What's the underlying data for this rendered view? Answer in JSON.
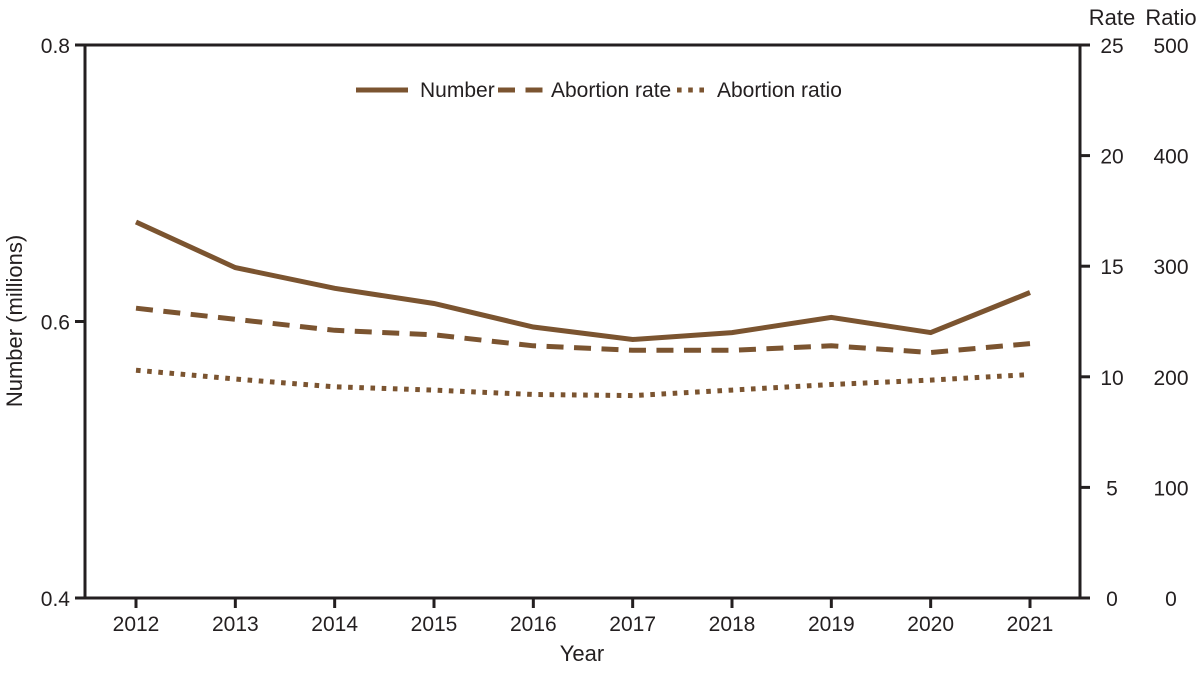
{
  "chart_data": {
    "type": "line",
    "title": "",
    "xlabel": "Year",
    "x": [
      2012,
      2013,
      2014,
      2015,
      2016,
      2017,
      2018,
      2019,
      2020,
      2021
    ],
    "x_tick_labels": [
      "2012",
      "2013",
      "2014",
      "2015",
      "2016",
      "2017",
      "2018",
      "2019",
      "2020",
      "2021"
    ],
    "left_axis": {
      "label": "Number (millions)",
      "min": 0.4,
      "max": 0.8,
      "tick_labels": [
        "0.8",
        "0.6",
        "0.4"
      ],
      "tick_values": [
        0.8,
        0.6,
        0.4
      ]
    },
    "right_axes": [
      {
        "header": "Rate",
        "min": 0,
        "max": 25,
        "tick_labels": [
          "25",
          "20",
          "15",
          "10",
          "5",
          "0"
        ],
        "tick_values": [
          25,
          20,
          15,
          10,
          5,
          0
        ]
      },
      {
        "header": "Ratio",
        "min": 0,
        "max": 500,
        "tick_labels": [
          "500",
          "400",
          "300",
          "200",
          "100",
          "0"
        ],
        "tick_values": [
          500,
          400,
          300,
          200,
          100,
          0
        ]
      }
    ],
    "series": [
      {
        "name": "Number",
        "axis": "left",
        "style": "solid",
        "values": [
          0.672,
          0.639,
          0.624,
          0.613,
          0.596,
          0.587,
          0.592,
          0.603,
          0.592,
          0.621
        ]
      },
      {
        "name": "Abortion rate",
        "axis": "rate",
        "style": "dashed",
        "values": [
          13.1,
          12.6,
          12.1,
          11.9,
          11.4,
          11.2,
          11.2,
          11.4,
          11.1,
          11.5
        ]
      },
      {
        "name": "Abortion ratio",
        "axis": "ratio",
        "style": "dotted",
        "values": [
          206,
          198,
          191,
          188,
          184,
          183,
          188,
          193,
          197,
          202
        ]
      }
    ],
    "legend": {
      "labels": [
        "Number",
        "Abortion rate",
        "Abortion ratio"
      ],
      "position": "top-center"
    },
    "colors": {
      "line": "#7B5430",
      "text": "#231F20",
      "axis": "#231F20"
    },
    "grid": "off"
  }
}
